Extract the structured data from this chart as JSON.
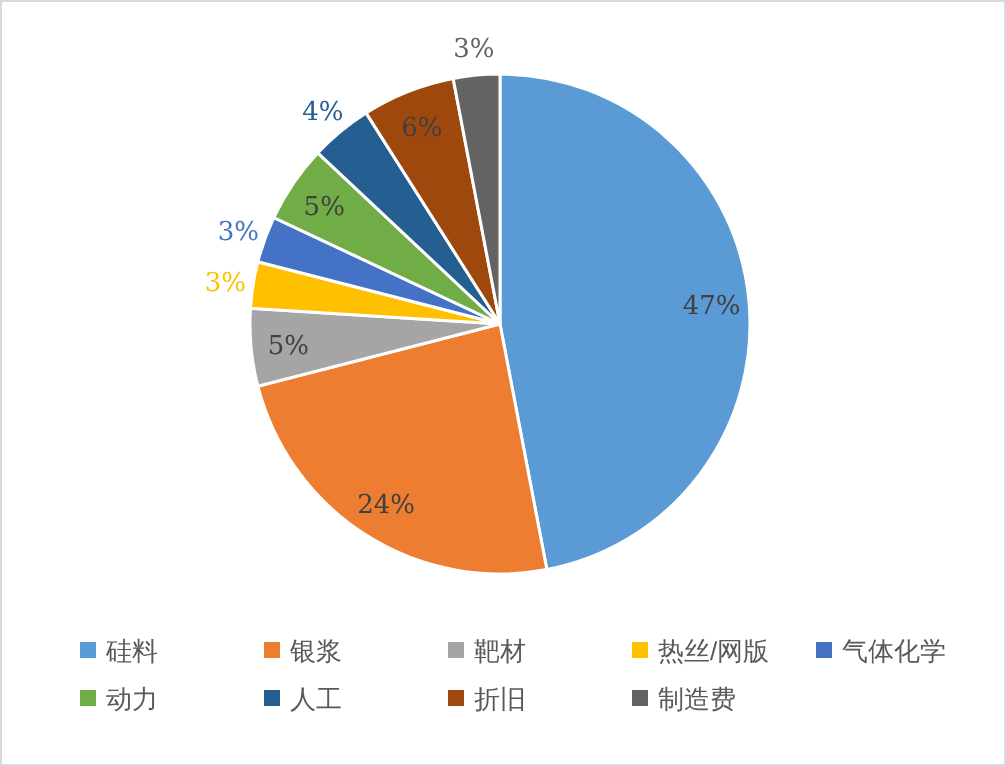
{
  "chart_data": {
    "type": "pie",
    "categories": [
      "硅料",
      "银浆",
      "靶材",
      "热丝/网版",
      "气体化学",
      "动力",
      "人工",
      "折旧",
      "制造费"
    ],
    "values": [
      47,
      24,
      5,
      3,
      3,
      5,
      4,
      6,
      3
    ],
    "colors": [
      "#5b9bd5",
      "#ed7d31",
      "#a5a5a5",
      "#ffc000",
      "#4472c4",
      "#70ad47",
      "#255e91",
      "#9e480e",
      "#636363"
    ],
    "value_labels": [
      "47%",
      "24%",
      "5%",
      "3%",
      "3%",
      "5%",
      "4%",
      "6%",
      "3%"
    ],
    "legend": "bottom"
  }
}
